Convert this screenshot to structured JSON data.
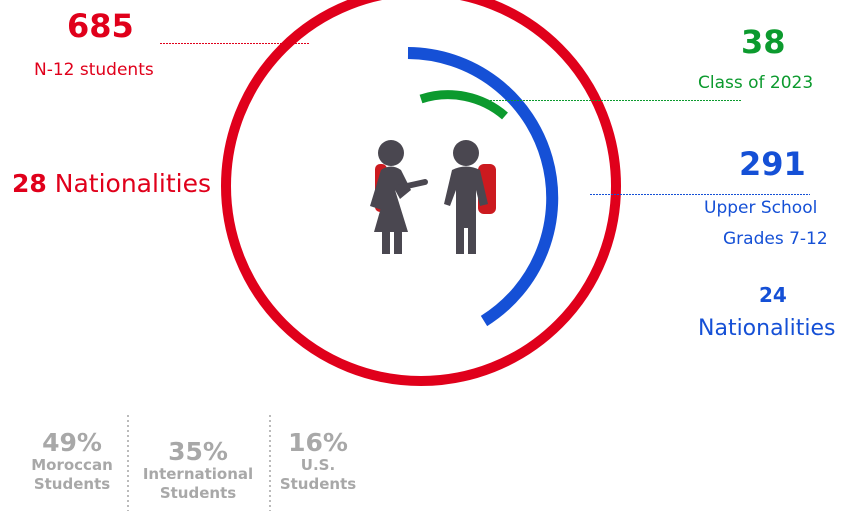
{
  "total": {
    "value": "685",
    "label": "N-12 students",
    "color": "#e0001b"
  },
  "nationalities_all": {
    "value": "28",
    "label": "Nationalities"
  },
  "class_2023": {
    "value": "38",
    "label": "Class of 2023",
    "color": "#0c9a2e"
  },
  "upper_school": {
    "value": "291",
    "line1": "Upper School",
    "line2": "Grades 7-12",
    "color": "#1550d6"
  },
  "nationalities_upper": {
    "value": "24",
    "label": "Nationalities"
  },
  "breakdown": [
    {
      "pct": "49%",
      "line1": "Moroccan",
      "line2": "Students"
    },
    {
      "pct": "35%",
      "line1": "International",
      "line2": "Students"
    },
    {
      "pct": "16%",
      "line1": "U.S.",
      "line2": "Students"
    }
  ],
  "icon": "students-icon"
}
